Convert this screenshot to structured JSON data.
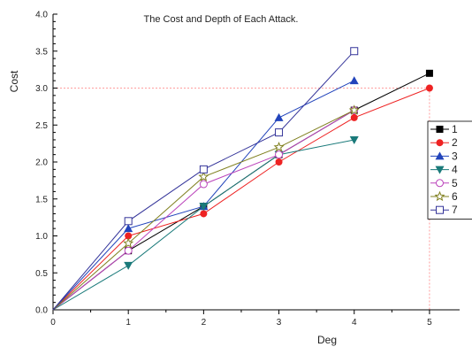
{
  "chart_data": {
    "type": "line",
    "title": "The Cost and Depth of Each Attack.",
    "xlabel": "Deg",
    "ylabel": "Cost",
    "xlim": [
      0,
      5.4
    ],
    "ylim": [
      0,
      4.0
    ],
    "x_ticks": [
      "0",
      "1",
      "2",
      "3",
      "4",
      "5"
    ],
    "y_ticks": [
      "0.0",
      "0.5",
      "1.0",
      "1.5",
      "2.0",
      "2.5",
      "3.0",
      "3.5",
      "4.0"
    ],
    "grid": false,
    "legend_position": "right",
    "reference_lines": {
      "x": 5,
      "y": 3.0,
      "color": "#ff8080"
    },
    "series": [
      {
        "name": "1",
        "color": "#000000",
        "marker": "square-filled",
        "x": [
          0,
          1,
          2,
          3,
          4,
          5
        ],
        "y": [
          0,
          0.8,
          1.4,
          2.1,
          2.7,
          3.2
        ]
      },
      {
        "name": "2",
        "color": "#ee2222",
        "marker": "circle-filled",
        "x": [
          0,
          1,
          2,
          3,
          4,
          5
        ],
        "y": [
          0,
          1.0,
          1.3,
          2.0,
          2.6,
          3.0
        ]
      },
      {
        "name": "3",
        "color": "#2244bb",
        "marker": "triangle-up-filled",
        "x": [
          0,
          1,
          2,
          3,
          4
        ],
        "y": [
          0,
          1.1,
          1.4,
          2.6,
          3.1
        ]
      },
      {
        "name": "4",
        "color": "#1a7a7a",
        "marker": "triangle-down-filled",
        "x": [
          0,
          1,
          2,
          3,
          4
        ],
        "y": [
          0,
          0.6,
          1.4,
          2.1,
          2.3
        ]
      },
      {
        "name": "5",
        "color": "#bb44bb",
        "marker": "circle-open",
        "x": [
          0,
          1,
          2,
          3,
          4
        ],
        "y": [
          0,
          0.8,
          1.7,
          2.1,
          2.7
        ]
      },
      {
        "name": "6",
        "color": "#808020",
        "marker": "star-open",
        "x": [
          0,
          1,
          2,
          3,
          4
        ],
        "y": [
          0,
          0.9,
          1.8,
          2.2,
          2.7
        ]
      },
      {
        "name": "7",
        "color": "#333399",
        "marker": "square-open",
        "x": [
          0,
          1,
          2,
          3,
          4
        ],
        "y": [
          0,
          1.2,
          1.9,
          2.4,
          3.5
        ]
      }
    ]
  }
}
